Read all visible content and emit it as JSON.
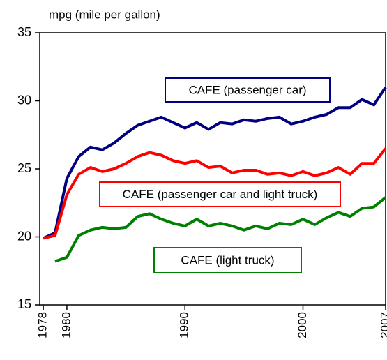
{
  "chart_data": {
    "type": "line",
    "y_label": "mpg (mile per gallon)",
    "x": [
      1978,
      1979,
      1980,
      1981,
      1982,
      1983,
      1984,
      1985,
      1986,
      1987,
      1988,
      1989,
      1990,
      1991,
      1992,
      1993,
      1994,
      1995,
      1996,
      1997,
      1998,
      1999,
      2000,
      2001,
      2002,
      2003,
      2004,
      2005,
      2006,
      2007
    ],
    "series": [
      {
        "name": "CAFE (passenger car)",
        "color": "#000080",
        "values": [
          19.9,
          20.3,
          24.3,
          25.9,
          26.6,
          26.4,
          26.9,
          27.6,
          28.2,
          28.5,
          28.8,
          28.4,
          28.0,
          28.4,
          27.9,
          28.4,
          28.3,
          28.6,
          28.5,
          28.7,
          28.8,
          28.3,
          28.5,
          28.8,
          29.0,
          29.5,
          29.5,
          30.1,
          29.7,
          31.0
        ]
      },
      {
        "name": "CAFE (passenger car and light truck)",
        "color": "#ff0000",
        "values": [
          19.9,
          20.1,
          23.1,
          24.6,
          25.1,
          24.8,
          25.0,
          25.4,
          25.9,
          26.2,
          26.0,
          25.6,
          25.4,
          25.6,
          25.1,
          25.2,
          24.7,
          24.9,
          24.9,
          24.6,
          24.7,
          24.5,
          24.8,
          24.5,
          24.7,
          25.1,
          24.6,
          25.4,
          25.4,
          26.5
        ]
      },
      {
        "name": "CAFE (light truck)",
        "color": "#008000",
        "values": [
          null,
          18.2,
          18.5,
          20.1,
          20.5,
          20.7,
          20.6,
          20.7,
          21.5,
          21.7,
          21.3,
          21.0,
          20.8,
          21.3,
          20.8,
          21.0,
          20.8,
          20.5,
          20.8,
          20.6,
          21.0,
          20.9,
          21.3,
          20.9,
          21.4,
          21.8,
          21.5,
          22.1,
          22.2,
          22.9
        ]
      }
    ],
    "xlim": [
      1977.7,
      2007
    ],
    "xticks": [
      1978,
      1980,
      1990,
      2000,
      2007
    ],
    "ylim": [
      15,
      35
    ],
    "yticks": [
      15,
      20,
      25,
      30,
      35
    ]
  }
}
